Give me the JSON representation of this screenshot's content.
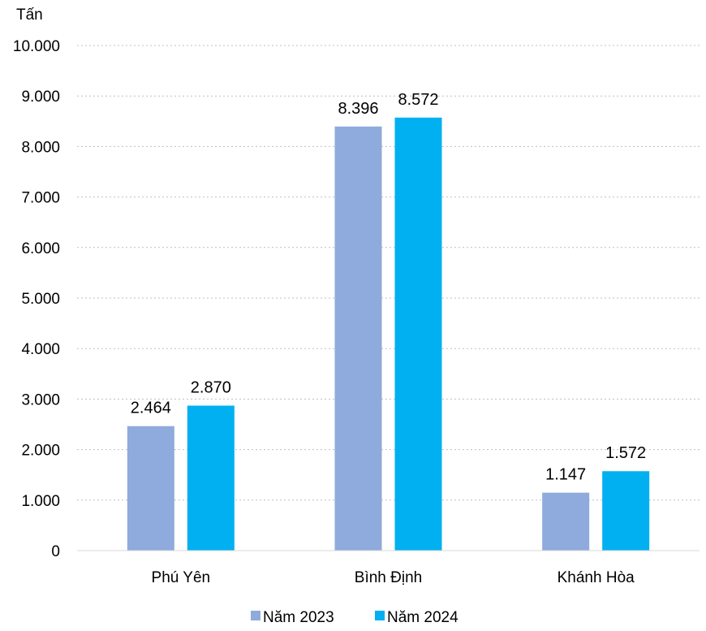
{
  "chart_data": {
    "type": "bar",
    "title": "",
    "y_unit_label": "Tấn",
    "categories": [
      "Phú Yên",
      "Bình Định",
      "Khánh Hòa"
    ],
    "series": [
      {
        "name": "Năm 2023",
        "color": "#8FAADC",
        "values": [
          2464,
          8396,
          1147
        ],
        "labels": [
          "2.464",
          "8.396",
          "1.147"
        ]
      },
      {
        "name": "Năm 2024",
        "color": "#00B0F0",
        "values": [
          2870,
          8572,
          1572
        ],
        "labels": [
          "2.870",
          "8.572",
          "1.572"
        ]
      }
    ],
    "ylim": [
      0,
      10000
    ],
    "yticks": [
      {
        "value": 0,
        "label": "0"
      },
      {
        "value": 1000,
        "label": "1.000"
      },
      {
        "value": 2000,
        "label": "2.000"
      },
      {
        "value": 3000,
        "label": "3.000"
      },
      {
        "value": 4000,
        "label": "4.000"
      },
      {
        "value": 5000,
        "label": "5.000"
      },
      {
        "value": 6000,
        "label": "6.000"
      },
      {
        "value": 7000,
        "label": "7.000"
      },
      {
        "value": 8000,
        "label": "8.000"
      },
      {
        "value": 9000,
        "label": "9.000"
      },
      {
        "value": 10000,
        "label": "10.000"
      }
    ],
    "grid": true,
    "legend_position": "bottom"
  }
}
